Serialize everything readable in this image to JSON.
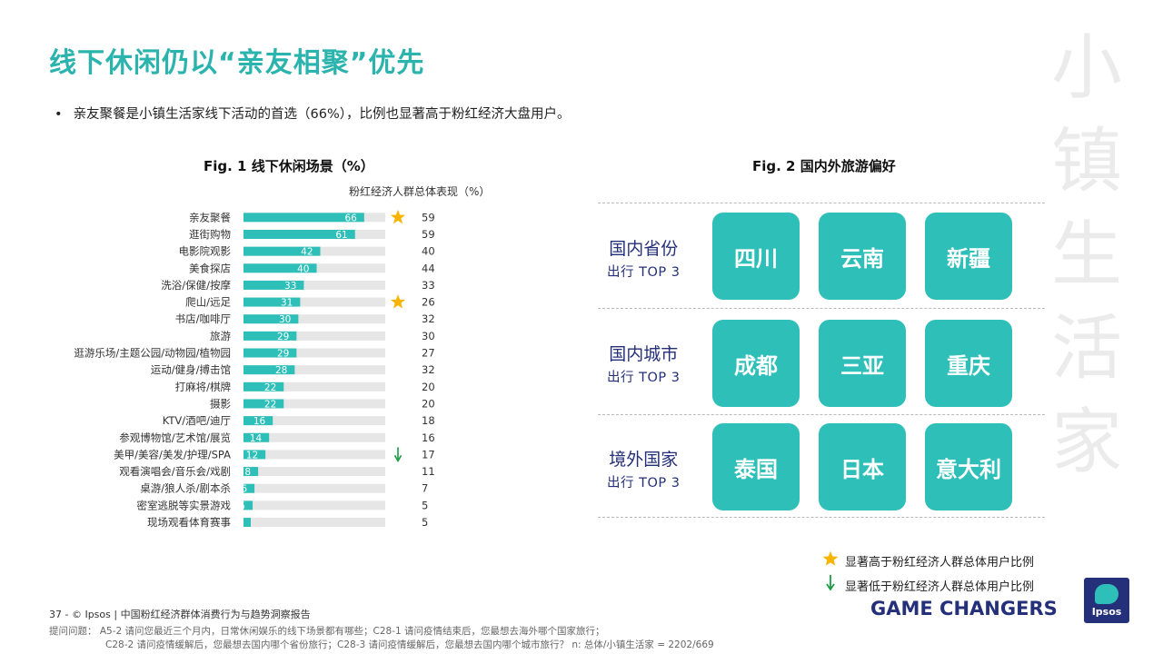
{
  "title": "线下休闲仍以“亲友相聚”优先",
  "bullet": {
    "dot": "•",
    "text": "亲友聚餐是小镇生活家线下活动的首选（66%），比例也显著高于粉红经济大盘用户。"
  },
  "side_title": [
    "小",
    "镇",
    "生",
    "活",
    "家"
  ],
  "fig1_title": "Fig. 1   线下休闲场景（%）",
  "fig2_title": "Fig. 2   国内外旅游偏好",
  "chart_subtitle": "粉红经济人群总体表现（%）",
  "chart_data": {
    "type": "bar",
    "orientation": "horizontal",
    "categories": [
      "亲友聚餐",
      "逛街购物",
      "电影院观影",
      "美食探店",
      "洗浴/保健/按摩",
      "爬山/远足",
      "书店/咖啡厅",
      "旅游",
      "逛游乐场/主题公园/动物园/植物园",
      "运动/健身/搏击馆",
      "打麻将/棋牌",
      "摄影",
      "KTV/酒吧/迪厅",
      "参观博物馆/艺术馆/展览",
      "美甲/美容/美发/护理/SPA",
      "观看演唱会/音乐会/戏剧",
      "桌游/狼人杀/剧本杀",
      "密室逃脱等实景游戏",
      "现场观看体育赛事"
    ],
    "series": [
      {
        "values": [
          66,
          61,
          42,
          40,
          33,
          31,
          30,
          29,
          29,
          28,
          22,
          22,
          16,
          14,
          12,
          8,
          6,
          5,
          null
        ]
      },
      {
        "name": "粉红经济人群总体表现（%）",
        "values": [
          59,
          59,
          40,
          44,
          33,
          26,
          32,
          30,
          27,
          32,
          20,
          20,
          18,
          16,
          17,
          11,
          7,
          5,
          5
        ]
      }
    ],
    "markers": [
      "star",
      "",
      "",
      "",
      "",
      "star",
      "",
      "",
      "",
      "",
      "",
      "",
      "",
      "",
      "down",
      "",
      "",
      "",
      ""
    ],
    "xlim": [
      0,
      100
    ],
    "colors": {
      "bar": "#2fbfb9",
      "track": "#e6e6e6",
      "star": "#f7b500",
      "down": "#1c9a46"
    }
  },
  "travel": {
    "groups": [
      {
        "label": "国内省份",
        "sub": "出行 TOP 3",
        "items": [
          "四川",
          "云南",
          "新疆"
        ]
      },
      {
        "label": "国内城市",
        "sub": "出行 TOP 3",
        "items": [
          "成都",
          "三亚",
          "重庆"
        ]
      },
      {
        "label": "境外国家",
        "sub": "出行 TOP 3",
        "items": [
          "泰国",
          "日本",
          "意大利"
        ]
      }
    ]
  },
  "legend": {
    "star_icon": "star-icon",
    "star_text": "显著高于粉红经济人群总体用户比例",
    "down_icon": "down-arrow-icon",
    "down_text": "显著低于粉红经济人群总体用户比例"
  },
  "footer": {
    "line1": "37  -  © Ipsos  |  中国粉红经济群体消费行为与趋势洞察报告",
    "line2": "提问问题：   A5-2 请问您最近三个月内，日常休闲娱乐的线下场景都有哪些；C28-1 请问疫情结束后，您最想去海外哪个国家旅行；",
    "line3": "C28-2 请问疫情缓解后，您最想去国内哪个省份旅行；C28-3 请问疫情缓解后，您最想去国内哪个城市旅行？  n: 总体/小镇生活家 = 2202/669"
  },
  "brand": {
    "tagline": "GAME CHANGERS",
    "logo_text": "Ipsos"
  }
}
